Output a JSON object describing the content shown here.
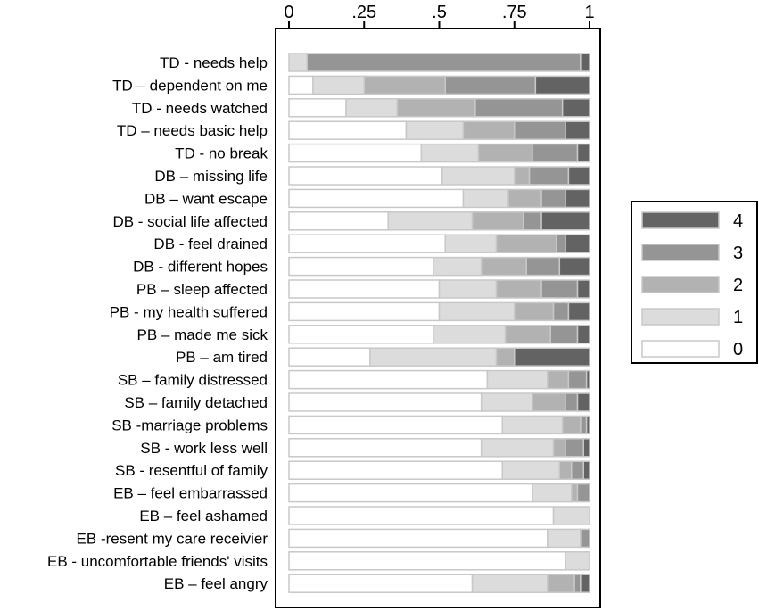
{
  "chart_data": {
    "type": "bar",
    "orientation": "horizontal",
    "stacked": true,
    "normalized": true,
    "xlim": [
      0,
      1
    ],
    "xticks": [
      {
        "value": 0,
        "label": "0"
      },
      {
        "value": 0.25,
        "label": ".25"
      },
      {
        "value": 0.5,
        "label": ".5"
      },
      {
        "value": 0.75,
        "label": ".75"
      },
      {
        "value": 1,
        "label": "1"
      }
    ],
    "grid": false,
    "legend_position": "right",
    "colors": {
      "0": "#ffffff",
      "1": "#dcdcdc",
      "2": "#b2b2b2",
      "3": "#959595",
      "4": "#636363",
      "edge": "#c8c8c8"
    },
    "legend": [
      {
        "key": "4",
        "label": "4"
      },
      {
        "key": "3",
        "label": "3"
      },
      {
        "key": "2",
        "label": "2"
      },
      {
        "key": "1",
        "label": "1"
      },
      {
        "key": "0",
        "label": "0"
      }
    ],
    "categories": [
      "TD - needs help",
      "TD – dependent on me",
      "TD - needs watched",
      "TD – needs basic help",
      "TD - no break",
      "DB – missing life",
      "DB – want escape",
      "DB - social life affected",
      "DB - feel drained",
      "DB - different hopes",
      "PB – sleep affected",
      "PB - my health suffered",
      "PB – made me sick",
      "PB – am tired",
      "SB – family distressed",
      "SB – family detached",
      "SB -marriage problems",
      "SB - work less well",
      "SB - resentful of family",
      "EB – feel embarrassed",
      "EB – feel ashamed",
      "EB -resent my care receivier",
      "EB - uncomfortable friends' visits",
      "EB – feel angry"
    ],
    "series": [
      {
        "name": "0",
        "values": [
          0.0,
          0.08,
          0.19,
          0.39,
          0.44,
          0.51,
          0.58,
          0.33,
          0.52,
          0.48,
          0.5,
          0.5,
          0.48,
          0.27,
          0.66,
          0.64,
          0.71,
          0.64,
          0.71,
          0.81,
          0.88,
          0.86,
          0.92,
          0.61
        ]
      },
      {
        "name": "1",
        "values": [
          0.06,
          0.17,
          0.17,
          0.19,
          0.19,
          0.24,
          0.15,
          0.28,
          0.17,
          0.16,
          0.19,
          0.25,
          0.24,
          0.42,
          0.2,
          0.17,
          0.2,
          0.24,
          0.19,
          0.13,
          0.12,
          0.11,
          0.08,
          0.25
        ]
      },
      {
        "name": "2",
        "values": [
          0.0,
          0.27,
          0.26,
          0.17,
          0.18,
          0.05,
          0.11,
          0.17,
          0.2,
          0.15,
          0.15,
          0.13,
          0.15,
          0.06,
          0.07,
          0.11,
          0.06,
          0.04,
          0.04,
          0.02,
          0.0,
          0.0,
          0.0,
          0.09
        ]
      },
      {
        "name": "3",
        "values": [
          0.91,
          0.3,
          0.29,
          0.17,
          0.15,
          0.13,
          0.08,
          0.06,
          0.03,
          0.11,
          0.12,
          0.05,
          0.09,
          0.0,
          0.06,
          0.04,
          0.02,
          0.06,
          0.04,
          0.04,
          0.0,
          0.03,
          0.0,
          0.02
        ]
      },
      {
        "name": "4",
        "values": [
          0.03,
          0.18,
          0.09,
          0.08,
          0.04,
          0.07,
          0.08,
          0.16,
          0.08,
          0.1,
          0.04,
          0.07,
          0.04,
          0.25,
          0.01,
          0.04,
          0.01,
          0.02,
          0.02,
          0.0,
          0.0,
          0.0,
          0.0,
          0.03
        ]
      }
    ]
  }
}
